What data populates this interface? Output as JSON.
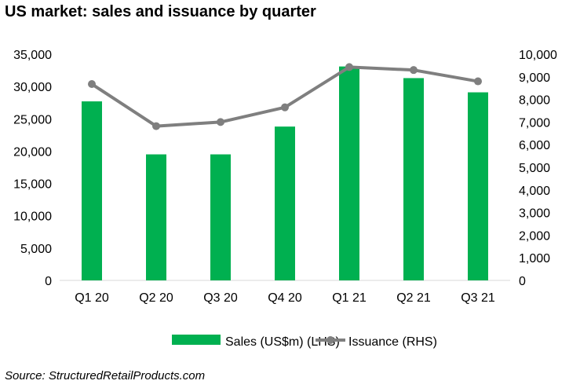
{
  "title": "US market: sales and issuance by quarter",
  "source": "Source: StructuredRetailProducts.com",
  "colors": {
    "bar": "#00b050",
    "line": "#7f7f7f",
    "axis": "#d9d9d9"
  },
  "chart_data": {
    "type": "bar",
    "title": "US market: sales and issuance by quarter",
    "categories": [
      "Q1 20",
      "Q2 20",
      "Q3 20",
      "Q4 20",
      "Q1 21",
      "Q2 21",
      "Q3 21"
    ],
    "y_left": {
      "ylim": [
        0,
        35000
      ],
      "ticks": [
        "0",
        "5,000",
        "10,000",
        "15,000",
        "20,000",
        "25,000",
        "30,000",
        "35,000"
      ]
    },
    "y_right": {
      "ylim": [
        0,
        10000
      ],
      "ticks": [
        "0",
        "1,000",
        "2,000",
        "3,000",
        "4,000",
        "5,000",
        "6,000",
        "7,000",
        "8,000",
        "9,000",
        "10,000"
      ]
    },
    "series": [
      {
        "name": "Sales (US$m) (LHS)",
        "type": "bar",
        "axis": "left",
        "values": [
          27700,
          19500,
          19500,
          23800,
          33100,
          31300,
          29100
        ]
      },
      {
        "name": "Issuance (RHS)",
        "type": "line",
        "axis": "right",
        "values": [
          8680,
          6820,
          7000,
          7650,
          9430,
          9300,
          8800
        ]
      }
    ],
    "legend": "bottom",
    "grid": false
  }
}
